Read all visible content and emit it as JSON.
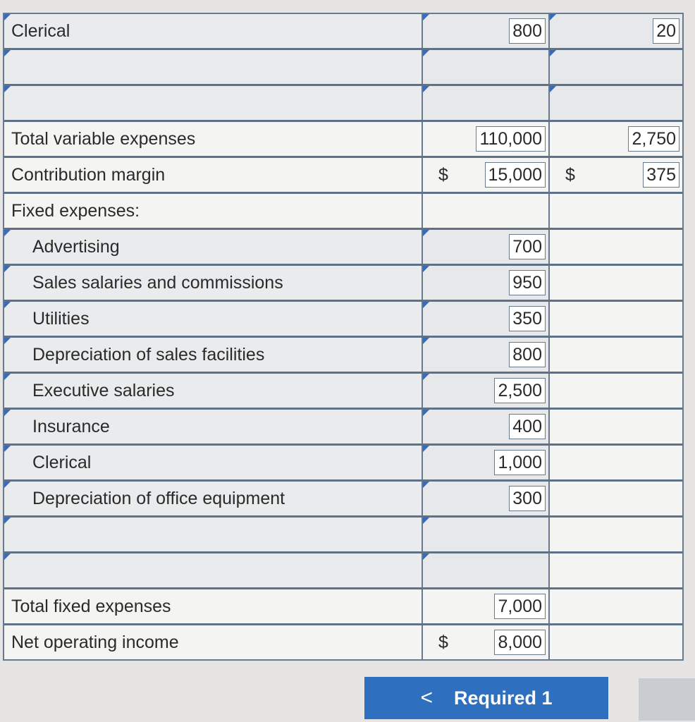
{
  "colors": {
    "accent": "#2f6fc0",
    "grid": "#6a7a8e",
    "flag": "#3a6bb8"
  },
  "rows": [
    {
      "label": "Clerical",
      "col1": "800",
      "col2": "20",
      "indent": false,
      "input": true
    },
    {
      "label": "",
      "col1": "",
      "col2": "",
      "indent": false,
      "input": true
    },
    {
      "label": "",
      "col1": "",
      "col2": "",
      "indent": false,
      "input": true
    },
    {
      "label": "Total variable expenses",
      "col1": "110,000",
      "col2": "2,750",
      "indent": false,
      "input": false
    },
    {
      "label": "Contribution margin",
      "dollar1": "$",
      "col1": "15,000",
      "dollar2": "$",
      "col2": "375",
      "indent": false,
      "input": false
    },
    {
      "label": "Fixed expenses:",
      "col1": "",
      "col2": "",
      "indent": false,
      "input": false
    },
    {
      "label": "Advertising",
      "col1": "700",
      "col2": "",
      "indent": true,
      "input": true
    },
    {
      "label": "Sales salaries and commissions",
      "col1": "950",
      "col2": "",
      "indent": true,
      "input": true
    },
    {
      "label": "Utilities",
      "col1": "350",
      "col2": "",
      "indent": true,
      "input": true
    },
    {
      "label": "Depreciation of sales facilities",
      "col1": "800",
      "col2": "",
      "indent": true,
      "input": true
    },
    {
      "label": "Executive salaries",
      "col1": "2,500",
      "col2": "",
      "indent": true,
      "input": true
    },
    {
      "label": "Insurance",
      "col1": "400",
      "col2": "",
      "indent": true,
      "input": true
    },
    {
      "label": "Clerical",
      "col1": "1,000",
      "col2": "",
      "indent": true,
      "input": true
    },
    {
      "label": "Depreciation of office equipment",
      "col1": "300",
      "col2": "",
      "indent": true,
      "input": true
    },
    {
      "label": "",
      "col1": "",
      "col2": "",
      "indent": false,
      "input": true
    },
    {
      "label": "",
      "col1": "",
      "col2": "",
      "indent": false,
      "input": true
    },
    {
      "label": "Total fixed expenses",
      "col1": "7,000",
      "col2": "",
      "indent": false,
      "input": false
    },
    {
      "label": "Net operating income",
      "dollar1": "$",
      "col1": "8,000",
      "col2": "",
      "indent": false,
      "input": false
    }
  ],
  "nav": {
    "prev_icon": "chevron-left-icon",
    "prev_glyph": "<",
    "label": "Required 1"
  }
}
